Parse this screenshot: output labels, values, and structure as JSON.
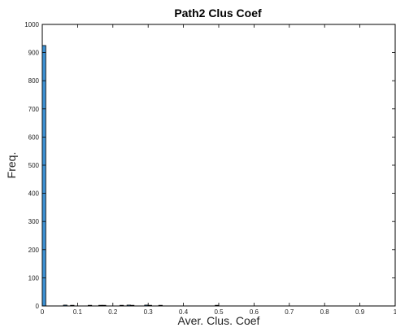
{
  "chart_data": {
    "type": "bar",
    "title": "Path2 Clus Coef",
    "xlabel": "Aver. Clus. Coef",
    "ylabel": "Freq.",
    "xlim": [
      0,
      1
    ],
    "ylim": [
      0,
      1000
    ],
    "xticks": [
      "0",
      "0.1",
      "0.2",
      "0.3",
      "0.4",
      "0.5",
      "0.6",
      "0.7",
      "0.8",
      "0.9",
      "1"
    ],
    "yticks": [
      "0",
      "100",
      "200",
      "300",
      "400",
      "500",
      "600",
      "700",
      "800",
      "900",
      "1000"
    ],
    "bin_width": 0.01,
    "bins": [
      {
        "x": 0.005,
        "value": 925
      },
      {
        "x": 0.065,
        "value": 3
      },
      {
        "x": 0.085,
        "value": 2
      },
      {
        "x": 0.135,
        "value": 2
      },
      {
        "x": 0.165,
        "value": 2
      },
      {
        "x": 0.175,
        "value": 1
      },
      {
        "x": 0.225,
        "value": 2
      },
      {
        "x": 0.245,
        "value": 3
      },
      {
        "x": 0.255,
        "value": 2
      },
      {
        "x": 0.295,
        "value": 3
      },
      {
        "x": 0.305,
        "value": 2
      },
      {
        "x": 0.335,
        "value": 1
      },
      {
        "x": 0.495,
        "value": 1
      }
    ],
    "grid": false,
    "bar_color": "#3b8fd1"
  }
}
